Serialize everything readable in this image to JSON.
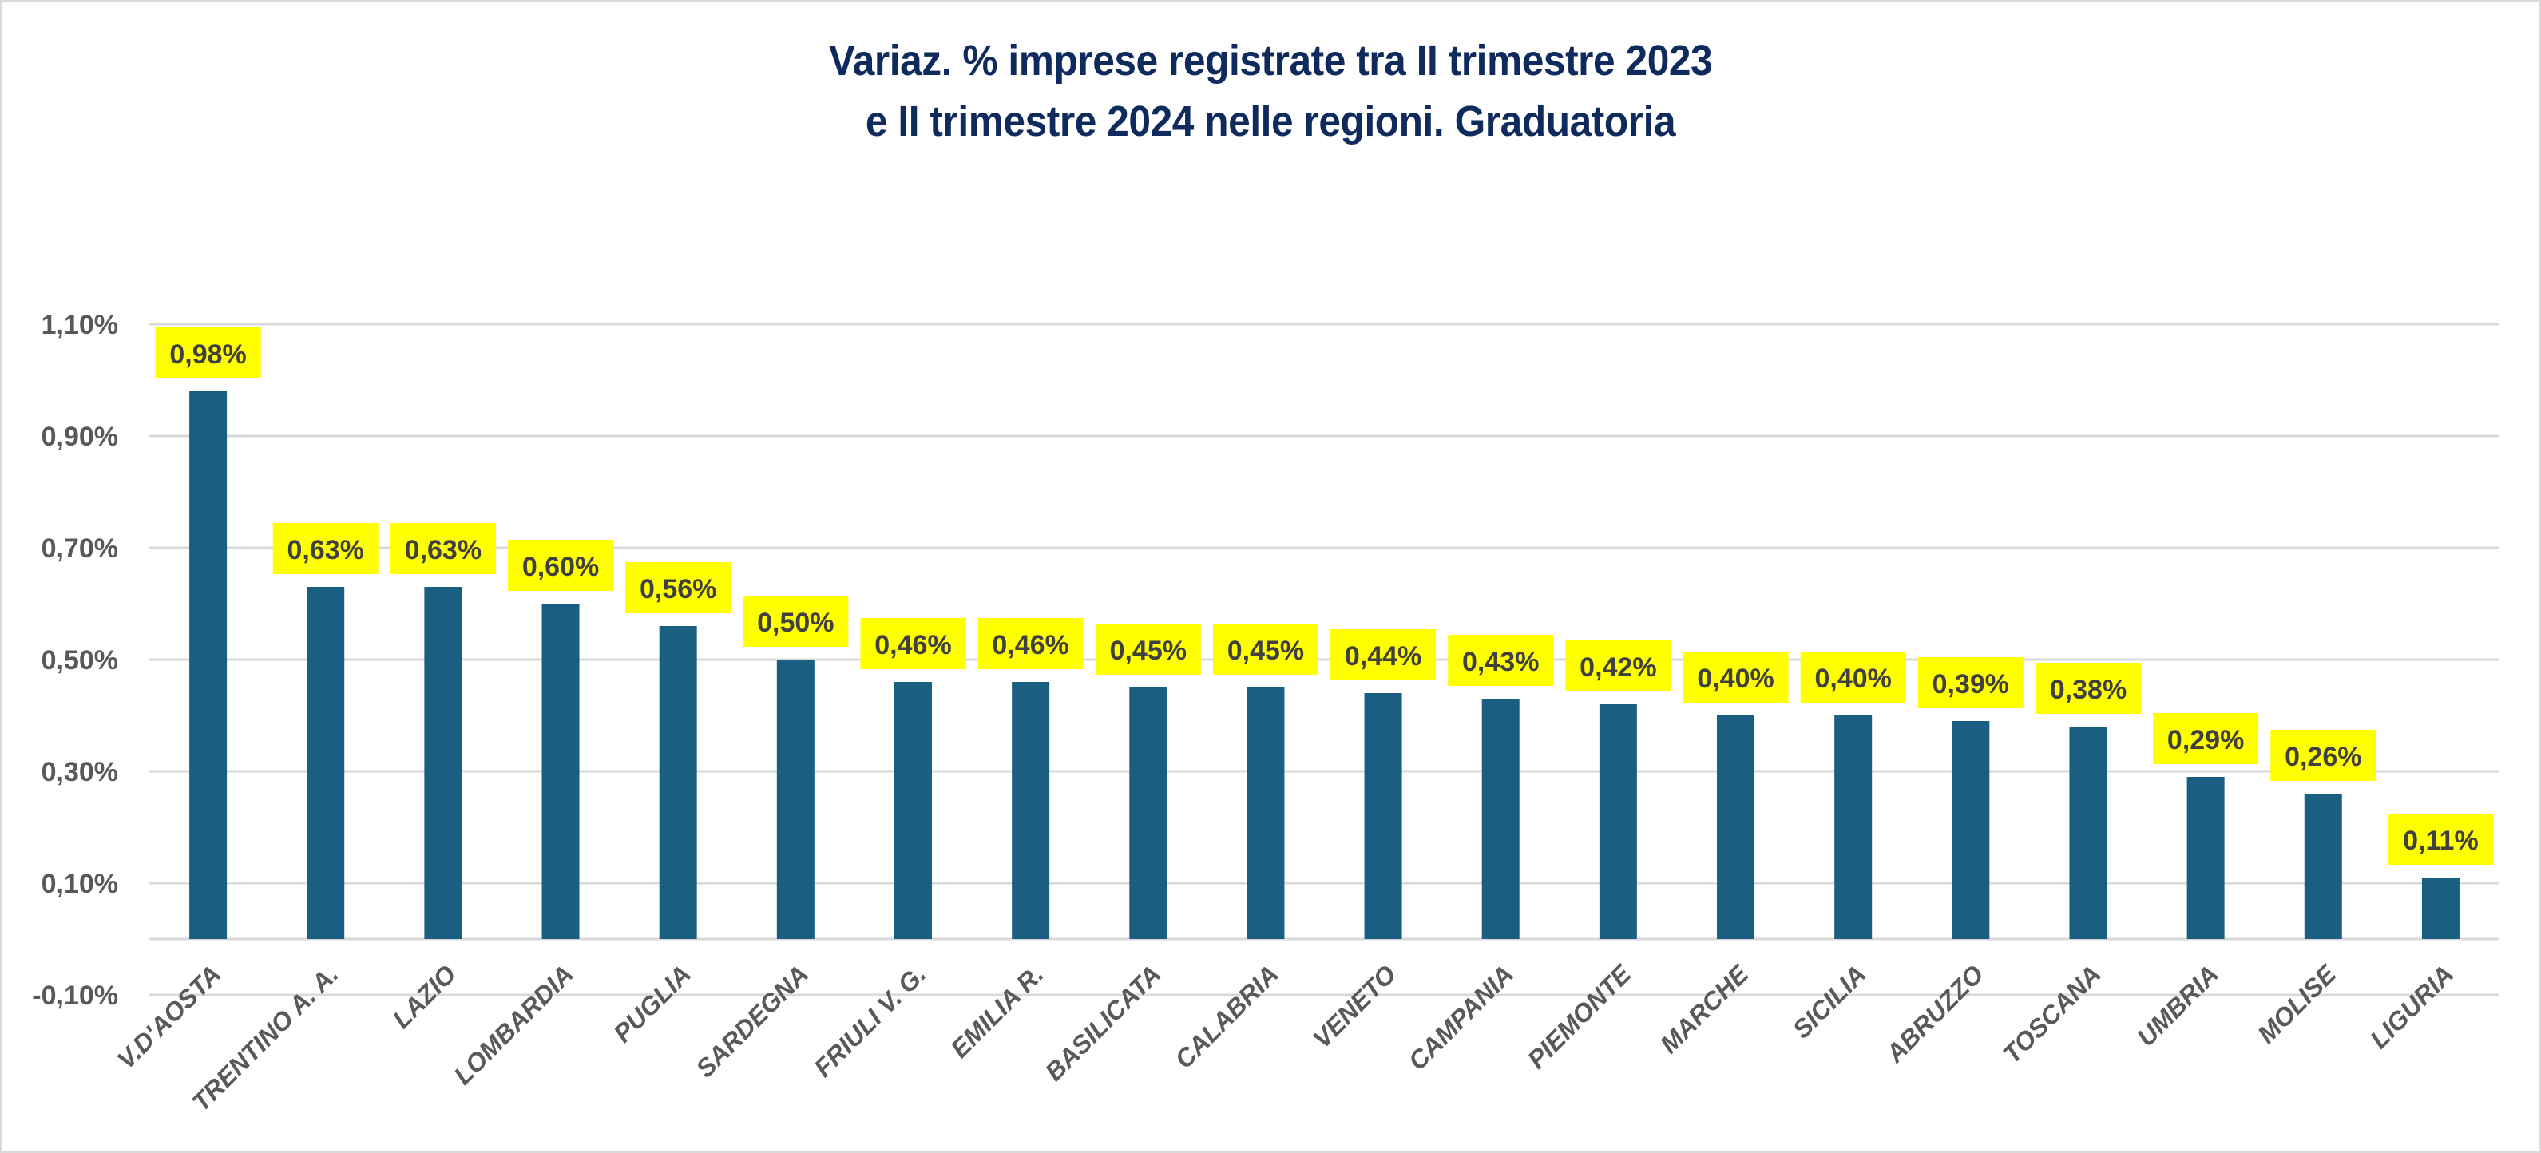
{
  "chart_data": {
    "type": "bar",
    "title": "Variaz. % imprese registrate tra II trimestre 2023 e II trimestre 2024 nelle regioni. Graduatoria",
    "title_lines": [
      "Variaz. % imprese registrate tra II trimestre 2023",
      "e II trimestre 2024 nelle regioni. Graduatoria"
    ],
    "xlabel": "",
    "ylabel": "",
    "categories": [
      "V.D'AOSTA",
      "TRENTINO A. A.",
      "LAZIO",
      "LOMBARDIA",
      "PUGLIA",
      "SARDEGNA",
      "FRIULI V. G.",
      "EMILIA R.",
      "BASILICATA",
      "CALABRIA",
      "VENETO",
      "CAMPANIA",
      "PIEMONTE",
      "MARCHE",
      "SICILIA",
      "ABRUZZO",
      "TOSCANA",
      "UMBRIA",
      "MOLISE",
      "LIGURIA"
    ],
    "values": [
      0.98,
      0.63,
      0.63,
      0.6,
      0.56,
      0.5,
      0.46,
      0.46,
      0.45,
      0.45,
      0.44,
      0.43,
      0.42,
      0.4,
      0.4,
      0.39,
      0.38,
      0.29,
      0.26,
      0.11
    ],
    "data_labels": [
      "0,98%",
      "0,63%",
      "0,63%",
      "0,60%",
      "0,56%",
      "0,50%",
      "0,46%",
      "0,46%",
      "0,45%",
      "0,45%",
      "0,44%",
      "0,43%",
      "0,42%",
      "0,40%",
      "0,40%",
      "0,39%",
      "0,38%",
      "0,29%",
      "0,26%",
      "0,11%"
    ],
    "ylim": [
      -0.1,
      1.1
    ],
    "yticks": [
      -0.1,
      0.1,
      0.3,
      0.5,
      0.7,
      0.9,
      1.1
    ],
    "ytick_labels": [
      "-0,10%",
      "0,10%",
      "0,30%",
      "0,50%",
      "0,70%",
      "0,90%",
      "1,10%"
    ],
    "grid": true,
    "legend": "none",
    "colors": {
      "bar": "#1a5f82",
      "label_bg": "#ffff00",
      "label_text": "#404040",
      "title": "#0f2a5c",
      "axis_text": "#595959",
      "grid": "#d9d9d9"
    }
  }
}
